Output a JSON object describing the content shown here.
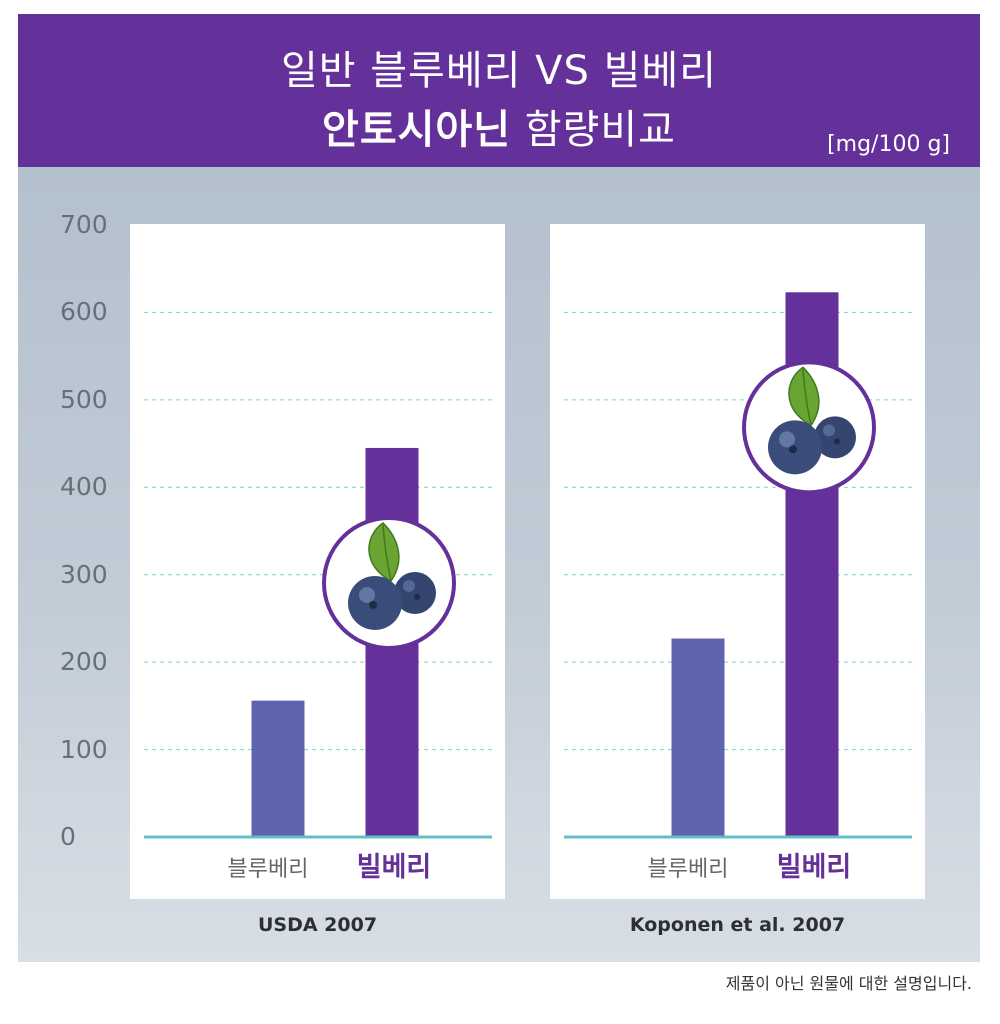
{
  "header": {
    "title_line1": "일반 블루베리  VS  빌베리",
    "title_line2_bold": "안토시아닌",
    "title_line2_light": "함량비교",
    "unit": "[mg/100 g]"
  },
  "footer_note": "제품이 아닌  원물에 대한 설명입니다.",
  "colors": {
    "header_bg": "#64309a",
    "blueberry_bar": "#5f63ad",
    "bilberry_bar": "#64309a",
    "baseline": "#5fc0c8",
    "gridline": "#7ecfd4",
    "blueberry_label": "#666666",
    "bilberry_label": "#64309a"
  },
  "icons": {
    "berry_badge": "blueberry-with-leaf-icon"
  },
  "chart_data": [
    {
      "type": "bar",
      "title": "USDA 2007",
      "categories": [
        "블루베리",
        "빌베리"
      ],
      "values": [
        156,
        445
      ],
      "ylim": [
        0,
        700
      ],
      "yticks": [
        "0",
        "100",
        "200",
        "300",
        "400",
        "500",
        "600",
        "700"
      ],
      "grid": true
    },
    {
      "type": "bar",
      "title": "Koponen et al. 2007",
      "categories": [
        "블루베리",
        "빌베리"
      ],
      "values": [
        227,
        623
      ],
      "ylim": [
        0,
        700
      ],
      "yticks": [
        "0",
        "100",
        "200",
        "300",
        "400",
        "500",
        "600",
        "700"
      ],
      "grid": true
    }
  ]
}
